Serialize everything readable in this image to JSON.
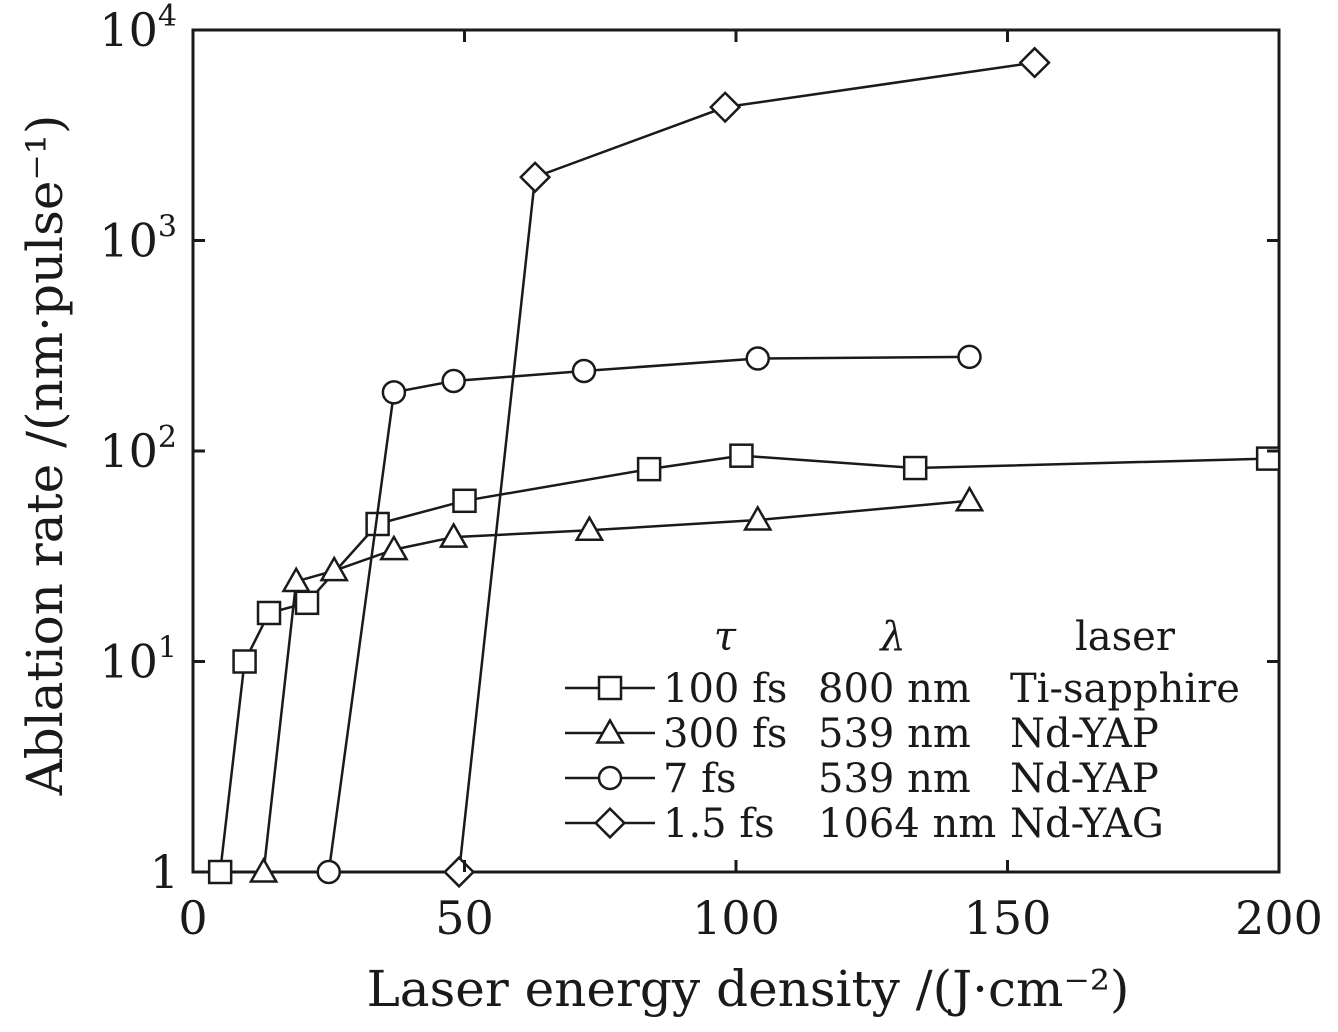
{
  "chart_data": {
    "type": "line",
    "xlabel": "Laser energy density /(J·cm⁻²)",
    "ylabel": "Ablation rate /(nm·pulse⁻¹)",
    "xlim": [
      0,
      200
    ],
    "ylim": [
      1,
      10000
    ],
    "yscale": "log",
    "grid": false,
    "legend_position": "bottom-right",
    "x_ticks": [
      {
        "value": 0,
        "label": "0"
      },
      {
        "value": 50,
        "label": "50"
      },
      {
        "value": 100,
        "label": "100"
      },
      {
        "value": 150,
        "label": "150"
      },
      {
        "value": 200,
        "label": "200"
      }
    ],
    "y_ticks": [
      {
        "value": 1,
        "base": "1",
        "exp": ""
      },
      {
        "value": 10,
        "base": "10",
        "exp": "1"
      },
      {
        "value": 100,
        "base": "10",
        "exp": "2"
      },
      {
        "value": 1000,
        "base": "10",
        "exp": "3"
      },
      {
        "value": 10000,
        "base": "10",
        "exp": "4"
      }
    ],
    "legend_headers": {
      "tau": "τ",
      "lambda": "λ",
      "laser": "laser"
    },
    "series": [
      {
        "tau": "100 fs",
        "lambda": "800 nm",
        "laser": "Ti-sapphire",
        "marker": "square",
        "x": [
          5,
          9.5,
          14,
          21,
          34,
          50,
          84,
          101,
          133,
          198
        ],
        "y": [
          1,
          10,
          17,
          19,
          45,
          58,
          82,
          95,
          83,
          92
        ]
      },
      {
        "tau": "300 fs",
        "lambda": "539 nm",
        "laser": "Nd-YAP",
        "marker": "triangle",
        "x": [
          13,
          19,
          26,
          37,
          48,
          73,
          104,
          143
        ],
        "y": [
          1,
          24,
          27,
          34,
          39,
          42,
          47,
          58
        ]
      },
      {
        "tau": "7 fs",
        "lambda": "539 nm",
        "laser": "Nd-YAP",
        "marker": "circle",
        "x": [
          25,
          37,
          48,
          72,
          104,
          143
        ],
        "y": [
          1,
          190,
          215,
          240,
          275,
          280
        ]
      },
      {
        "tau": "1.5 fs",
        "lambda": "1064 nm",
        "laser": "Nd-YAG",
        "marker": "diamond",
        "x": [
          49,
          63,
          98,
          155
        ],
        "y": [
          1,
          2000,
          4300,
          7000
        ]
      }
    ]
  }
}
